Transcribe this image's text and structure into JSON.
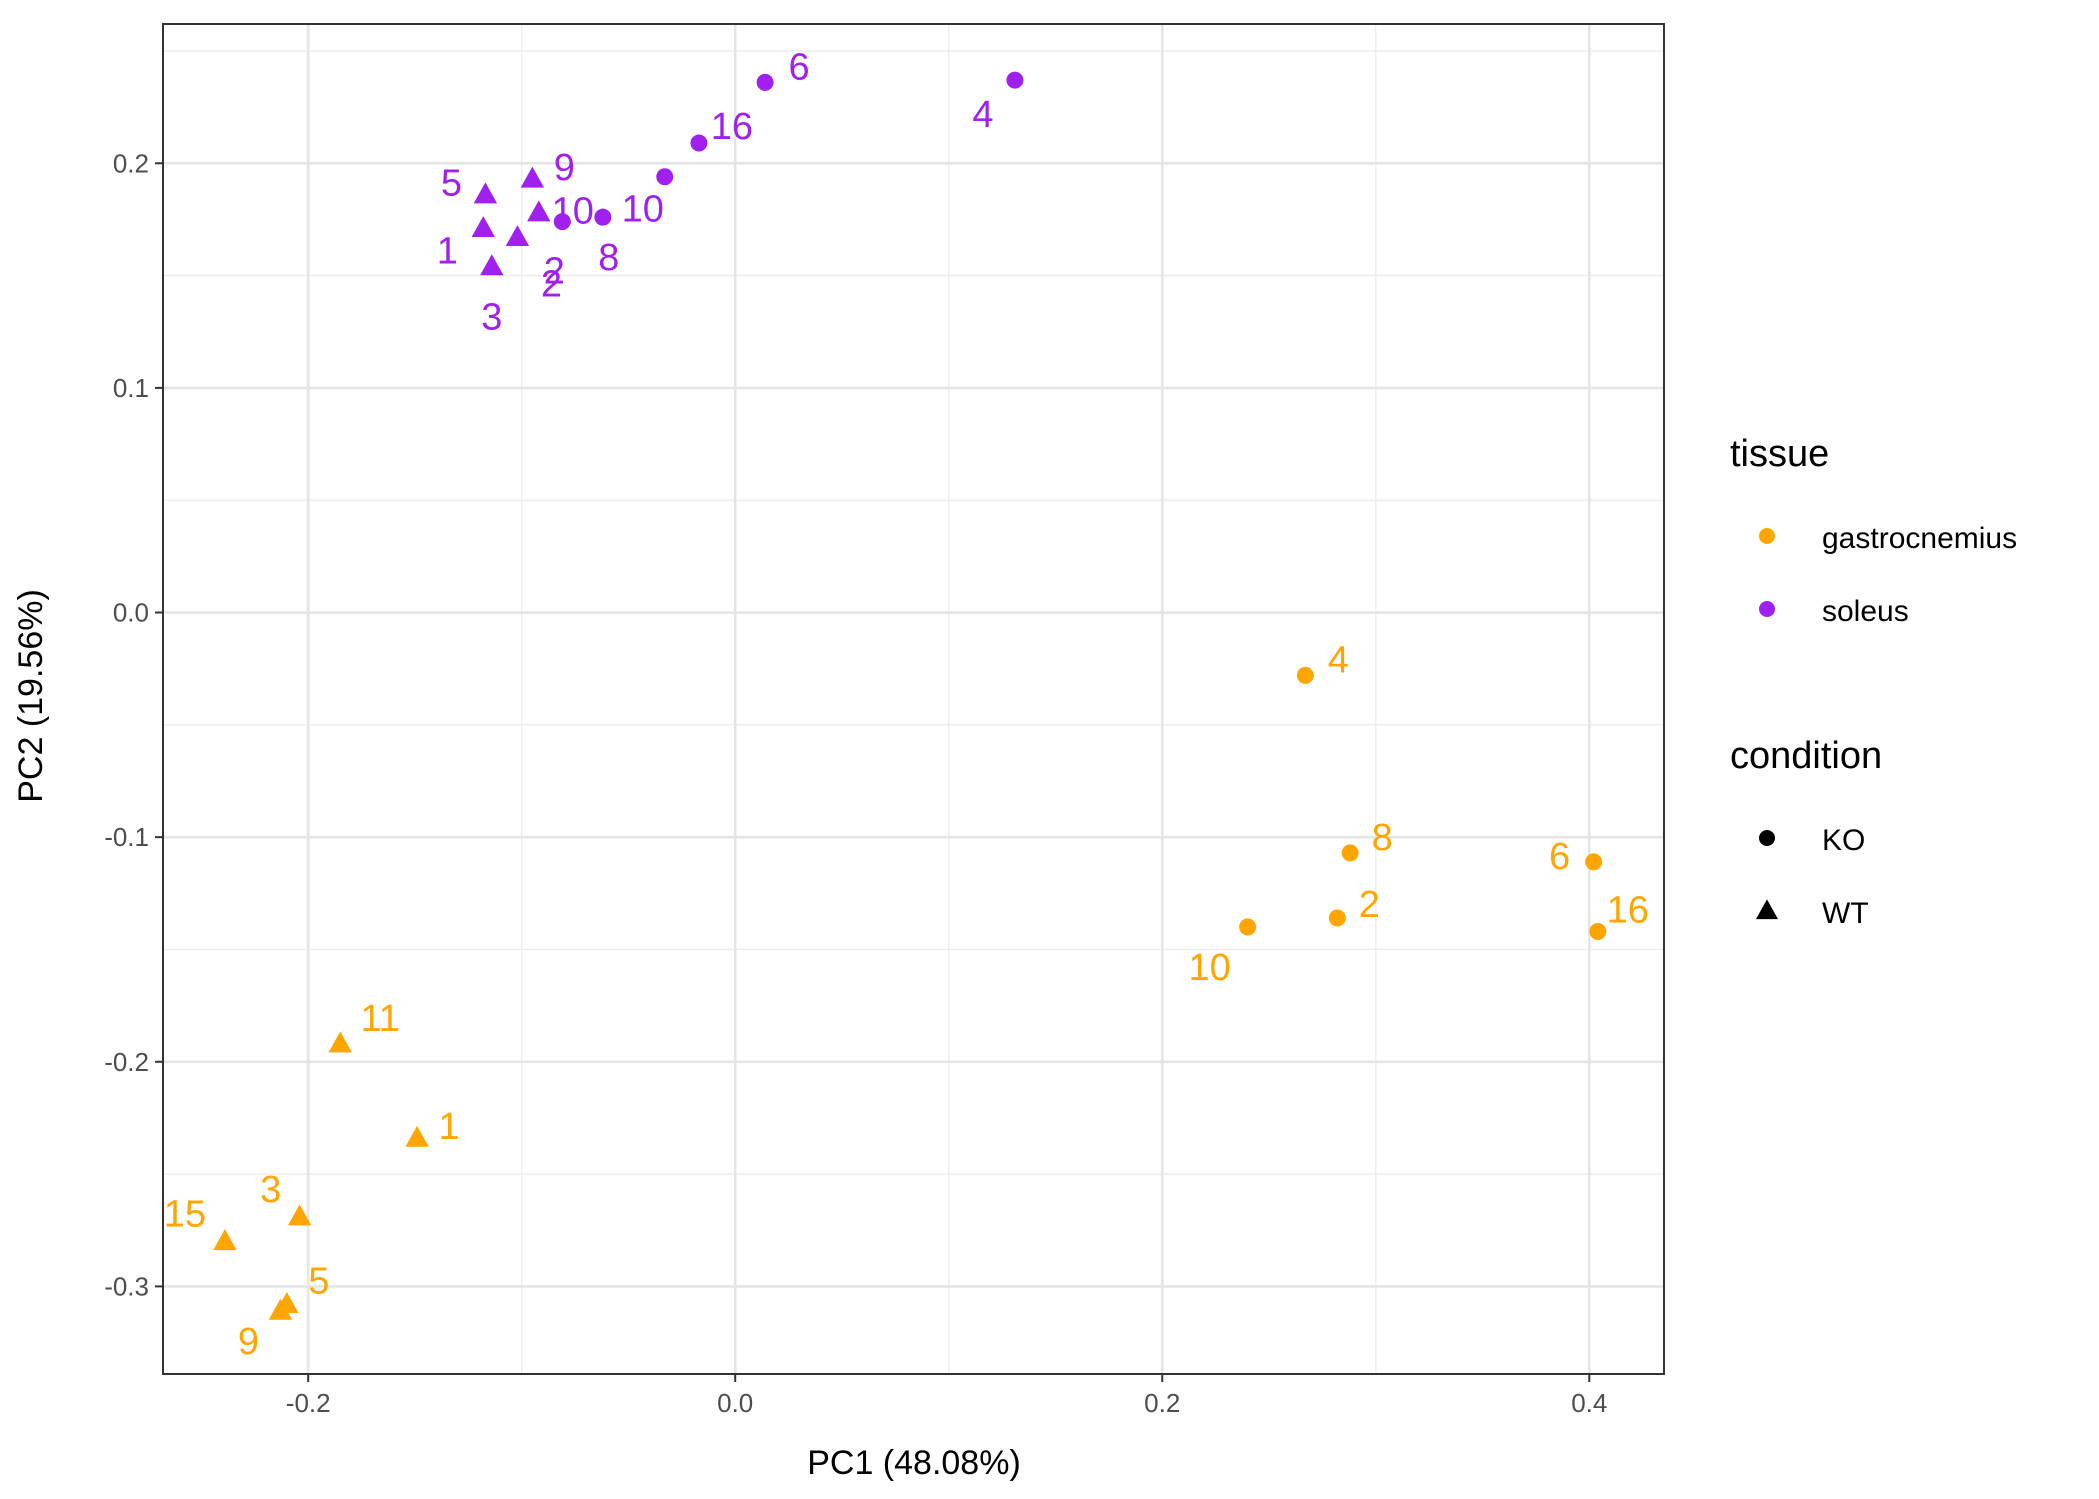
{
  "chart_data": {
    "type": "scatter",
    "xlabel": "PC1 (48.08%)",
    "ylabel": "PC2 (19.56%)",
    "xlim": [
      -0.268,
      0.435
    ],
    "ylim": [
      -0.339,
      0.262
    ],
    "x_ticks": [
      -0.2,
      0.0,
      0.2,
      0.4
    ],
    "x_tick_labels": [
      "-0.2",
      "0.0",
      "0.2",
      "0.4"
    ],
    "y_ticks": [
      -0.3,
      -0.2,
      -0.1,
      0.0,
      0.1,
      0.2
    ],
    "y_tick_labels": [
      "-0.3",
      "-0.2",
      "-0.1",
      "0.0",
      "0.1",
      "0.2"
    ],
    "grid": true,
    "legend_position": "right",
    "colors": {
      "gastrocnemius": "#FFA500",
      "soleus": "#A020F0"
    },
    "legends": [
      {
        "title": "tissue",
        "items": [
          {
            "label": "gastrocnemius",
            "shape": "circle",
            "color": "#FFA500"
          },
          {
            "label": "soleus",
            "shape": "circle",
            "color": "#A020F0"
          }
        ]
      },
      {
        "title": "condition",
        "items": [
          {
            "label": "KO",
            "shape": "circle",
            "color": "#000000"
          },
          {
            "label": "WT",
            "shape": "triangle",
            "color": "#000000"
          }
        ]
      }
    ],
    "points": [
      {
        "label": "6",
        "tissue": "soleus",
        "condition": "KO",
        "x": 0.014,
        "y": 0.236
      },
      {
        "label": "4",
        "tissue": "soleus",
        "condition": "KO",
        "x": 0.131,
        "y": 0.237
      },
      {
        "label": "16",
        "tissue": "soleus",
        "condition": "KO",
        "x": -0.017,
        "y": 0.209
      },
      {
        "label": "10",
        "tissue": "soleus",
        "condition": "KO",
        "x": -0.033,
        "y": 0.194
      },
      {
        "label": "8",
        "tissue": "soleus",
        "condition": "KO",
        "x": -0.062,
        "y": 0.176
      },
      {
        "label": "2",
        "tissue": "soleus",
        "condition": "KO",
        "x": -0.081,
        "y": 0.174
      },
      {
        "label": "5",
        "tissue": "soleus",
        "condition": "WT",
        "x": -0.117,
        "y": 0.186
      },
      {
        "label": "9",
        "tissue": "soleus",
        "condition": "WT",
        "x": -0.095,
        "y": 0.193
      },
      {
        "label": "1",
        "tissue": "soleus",
        "condition": "WT",
        "x": -0.118,
        "y": 0.171
      },
      {
        "label": "3",
        "tissue": "soleus",
        "condition": "WT",
        "x": -0.114,
        "y": 0.154
      },
      {
        "label": "2",
        "tissue": "soleus",
        "condition": "WT",
        "x": -0.102,
        "y": 0.167
      },
      {
        "label": "10",
        "tissue": "soleus",
        "condition": "WT",
        "x": -0.092,
        "y": 0.178
      },
      {
        "label": "4",
        "tissue": "gastrocnemius",
        "condition": "KO",
        "x": 0.267,
        "y": -0.028
      },
      {
        "label": "8",
        "tissue": "gastrocnemius",
        "condition": "KO",
        "x": 0.288,
        "y": -0.107
      },
      {
        "label": "2",
        "tissue": "gastrocnemius",
        "condition": "KO",
        "x": 0.282,
        "y": -0.136
      },
      {
        "label": "10",
        "tissue": "gastrocnemius",
        "condition": "KO",
        "x": 0.24,
        "y": -0.14
      },
      {
        "label": "6",
        "tissue": "gastrocnemius",
        "condition": "KO",
        "x": 0.402,
        "y": -0.111
      },
      {
        "label": "16",
        "tissue": "gastrocnemius",
        "condition": "KO",
        "x": 0.404,
        "y": -0.142
      },
      {
        "label": "11",
        "tissue": "gastrocnemius",
        "condition": "WT",
        "x": -0.185,
        "y": -0.192
      },
      {
        "label": "1",
        "tissue": "gastrocnemius",
        "condition": "WT",
        "x": -0.149,
        "y": -0.234
      },
      {
        "label": "3",
        "tissue": "gastrocnemius",
        "condition": "WT",
        "x": -0.204,
        "y": -0.269
      },
      {
        "label": "15",
        "tissue": "gastrocnemius",
        "condition": "WT",
        "x": -0.239,
        "y": -0.28
      },
      {
        "label": "5",
        "tissue": "gastrocnemius",
        "condition": "WT",
        "x": -0.21,
        "y": -0.308
      },
      {
        "label": "9",
        "tissue": "gastrocnemius",
        "condition": "WT",
        "x": -0.213,
        "y": -0.311
      }
    ]
  }
}
